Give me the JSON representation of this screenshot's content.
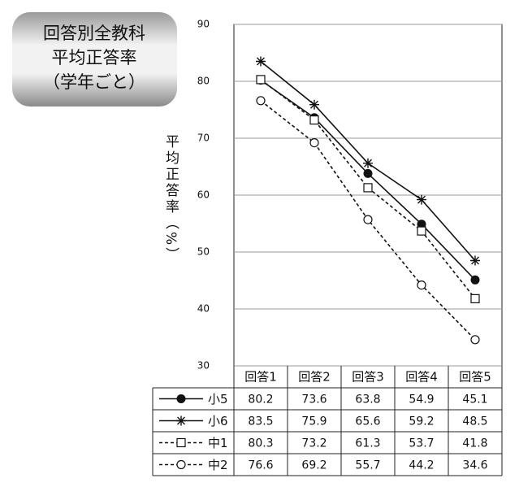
{
  "chart_data": {
    "type": "line",
    "title": "回答別全教科\n平均正答率\n（学年ごと）",
    "ylabel": "平均正答率（%）",
    "categories": [
      "回答1",
      "回答2",
      "回答3",
      "回答4",
      "回答5"
    ],
    "series": [
      {
        "name": "小5",
        "color": "#111111",
        "marker": "filled-circle",
        "linestyle": "solid",
        "values": [
          80.2,
          73.6,
          63.8,
          54.9,
          45.1
        ]
      },
      {
        "name": "小6",
        "color": "#111111",
        "marker": "asterisk",
        "linestyle": "solid",
        "values": [
          83.5,
          75.9,
          65.6,
          59.2,
          48.5
        ]
      },
      {
        "name": "中1",
        "color": "#111111",
        "marker": "open-square",
        "linestyle": "dashed",
        "values": [
          80.3,
          73.2,
          61.3,
          53.7,
          41.8
        ]
      },
      {
        "name": "中2",
        "color": "#111111",
        "marker": "open-circle",
        "linestyle": "dashed",
        "values": [
          76.6,
          69.2,
          55.7,
          44.2,
          34.6
        ]
      }
    ],
    "ylim": [
      30,
      90
    ],
    "yticks": [
      30,
      40,
      50,
      60,
      70,
      80,
      90
    ],
    "grid": true
  }
}
